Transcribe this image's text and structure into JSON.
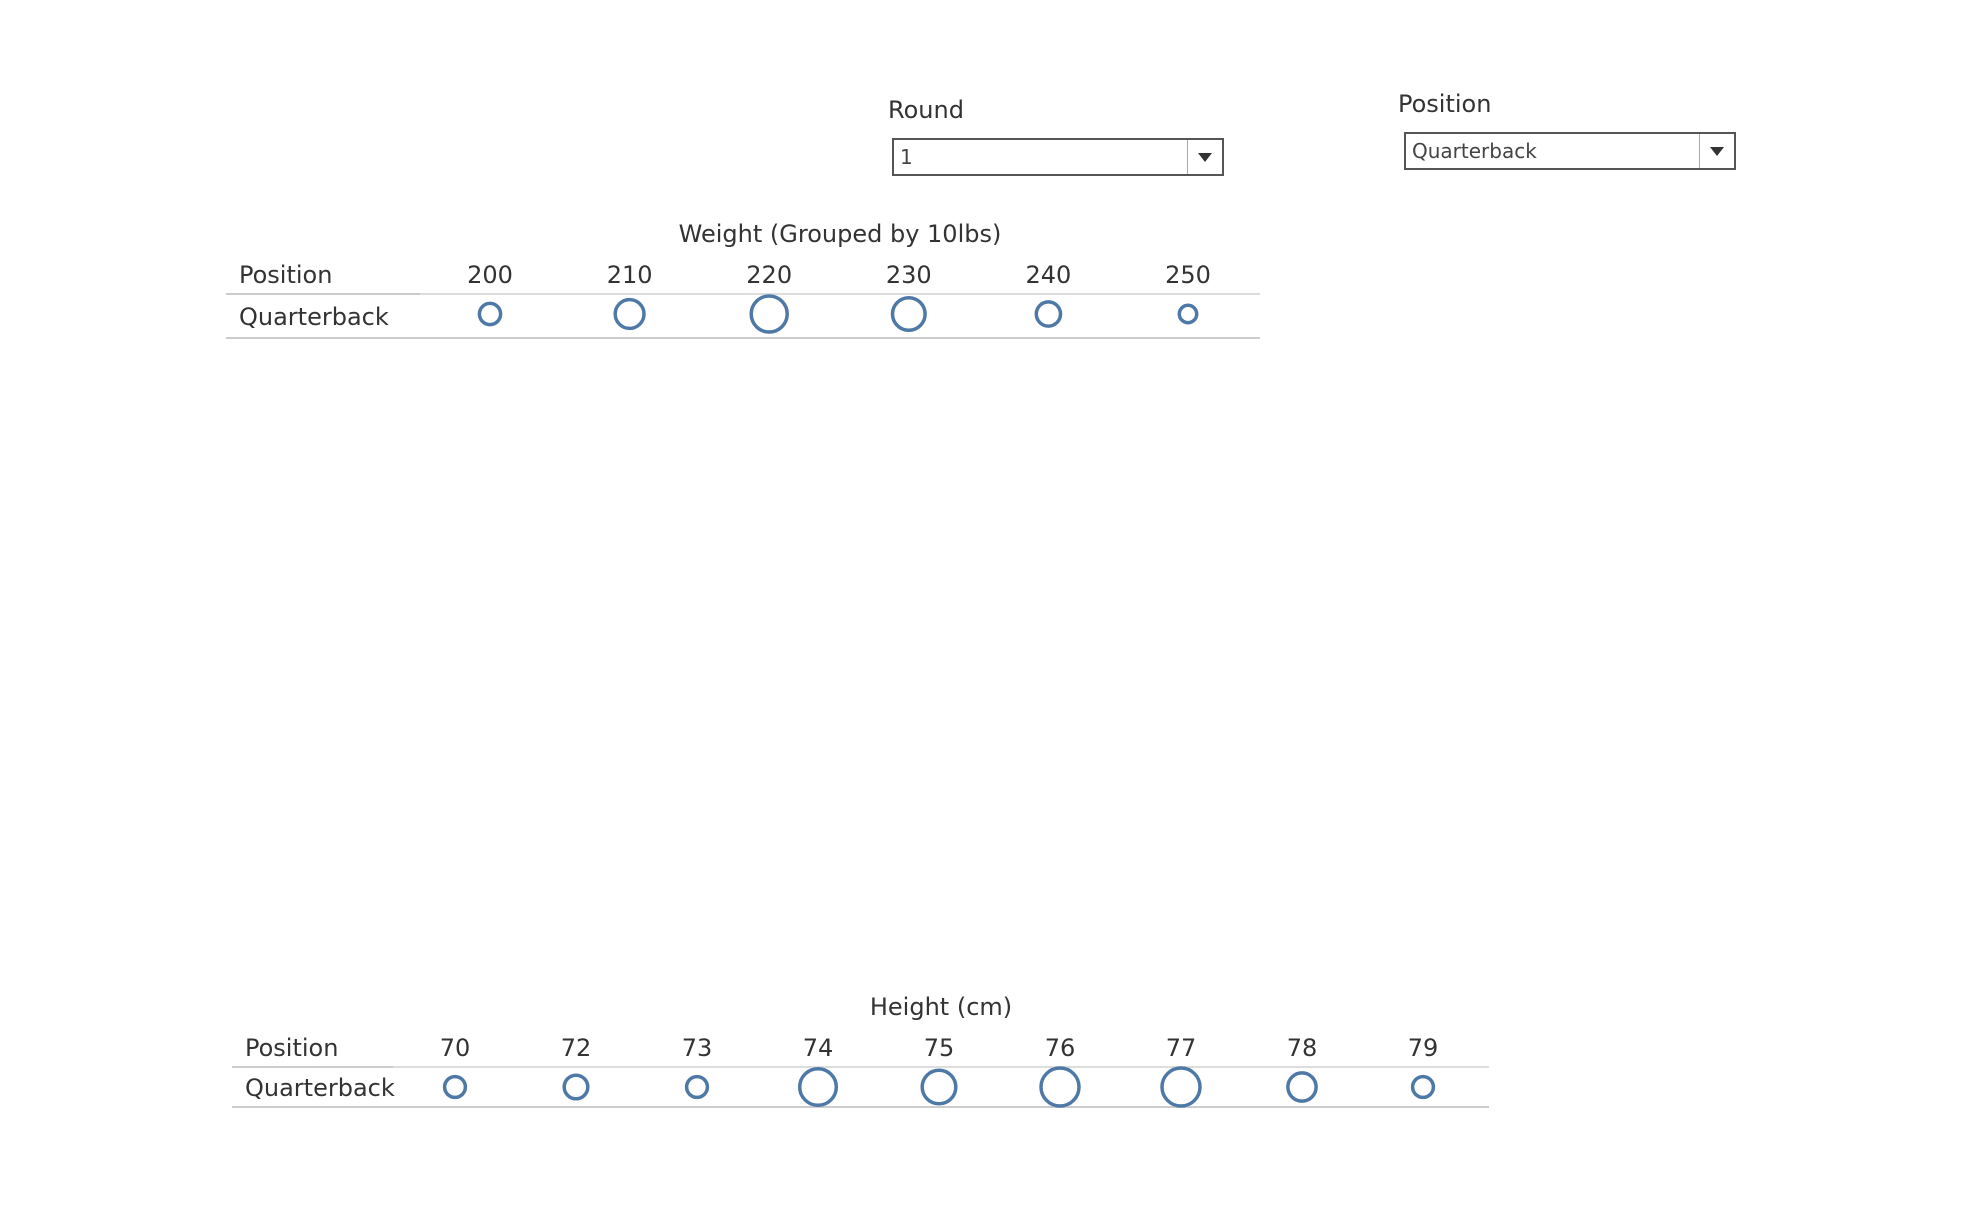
{
  "filters": {
    "round": {
      "title": "Round",
      "value": "1"
    },
    "position": {
      "title": "Position",
      "value": "Quarterback"
    }
  },
  "chart_data": [
    {
      "type": "scatter",
      "title": "Weight (Grouped by 10lbs)",
      "row_header": "Position",
      "rows": [
        "Quarterback"
      ],
      "categories": [
        "200",
        "210",
        "220",
        "230",
        "240",
        "250"
      ],
      "series": [
        {
          "values": [
            2,
            5,
            9,
            7,
            3,
            1
          ]
        }
      ],
      "mark_color": "#4E79A7",
      "note": "circle size encodes relative count"
    },
    {
      "type": "scatter",
      "title": "Height (cm)",
      "row_header": "Position",
      "rows": [
        "Quarterback"
      ],
      "categories": [
        "70",
        "72",
        "73",
        "74",
        "75",
        "76",
        "77",
        "78",
        "79"
      ],
      "series": [
        {
          "values": [
            2,
            3,
            2,
            10,
            8,
            11,
            11,
            5,
            2
          ]
        }
      ],
      "mark_color": "#4E79A7",
      "note": "circle size encodes relative count"
    }
  ]
}
